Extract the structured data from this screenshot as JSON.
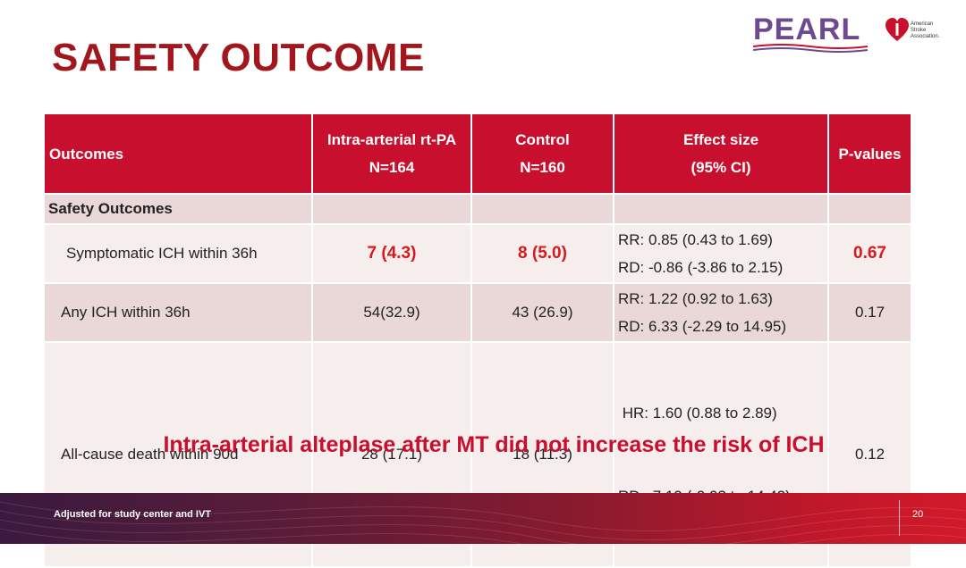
{
  "slide": {
    "title": "SAFETY OUTCOME",
    "conclusion": "Intra-arterial alteplase after MT did not increase the risk of ICH",
    "footnote": "Adjusted for study center and IVT",
    "page_number": "20"
  },
  "logos": {
    "pearl": "PEARL",
    "asa": [
      "American",
      "Stroke",
      "Association."
    ]
  },
  "colors": {
    "title": "#a2171d",
    "header_bg": "#c8102e",
    "highlight": "#d7191c",
    "row_light": "#f6eded",
    "row_dark": "#ead7d8"
  },
  "table": {
    "headers": {
      "outcomes": "Outcomes",
      "ia_line1": "Intra-arterial rt-PA",
      "ia_line2": "N=164",
      "control_line1": "Control",
      "control_line2": "N=160",
      "effect_line1": "Effect size",
      "effect_line2": "(95% CI)",
      "pvalues": "P-values"
    },
    "section_label": "Safety Outcomes",
    "rows": [
      {
        "label": "Symptomatic ICH within 36h",
        "ia": "7 (4.3)",
        "control": "8 (5.0)",
        "effect1": "RR: 0.85 (0.43 to 1.69)",
        "effect2": "RD: -0.86 (-3.86 to 2.15)",
        "p": "0.67"
      },
      {
        "label": "Any ICH within 36h",
        "ia": "54(32.9)",
        "control": "43 (26.9)",
        "effect1": "RR: 1.22 (0.92 to 1.63)",
        "effect2": "RD: 6.33 (-2.29 to 14.95)",
        "p": "0.17"
      },
      {
        "label": "All-cause death within 90d",
        "ia": "28 (17.1)",
        "control": "18 (11.3)",
        "effect1": " HR: 1.60 (0.88 to 2.89)",
        "effect2": "RD:  7.19 (-0.03 to 14.42)",
        "p": "0.12"
      }
    ]
  }
}
